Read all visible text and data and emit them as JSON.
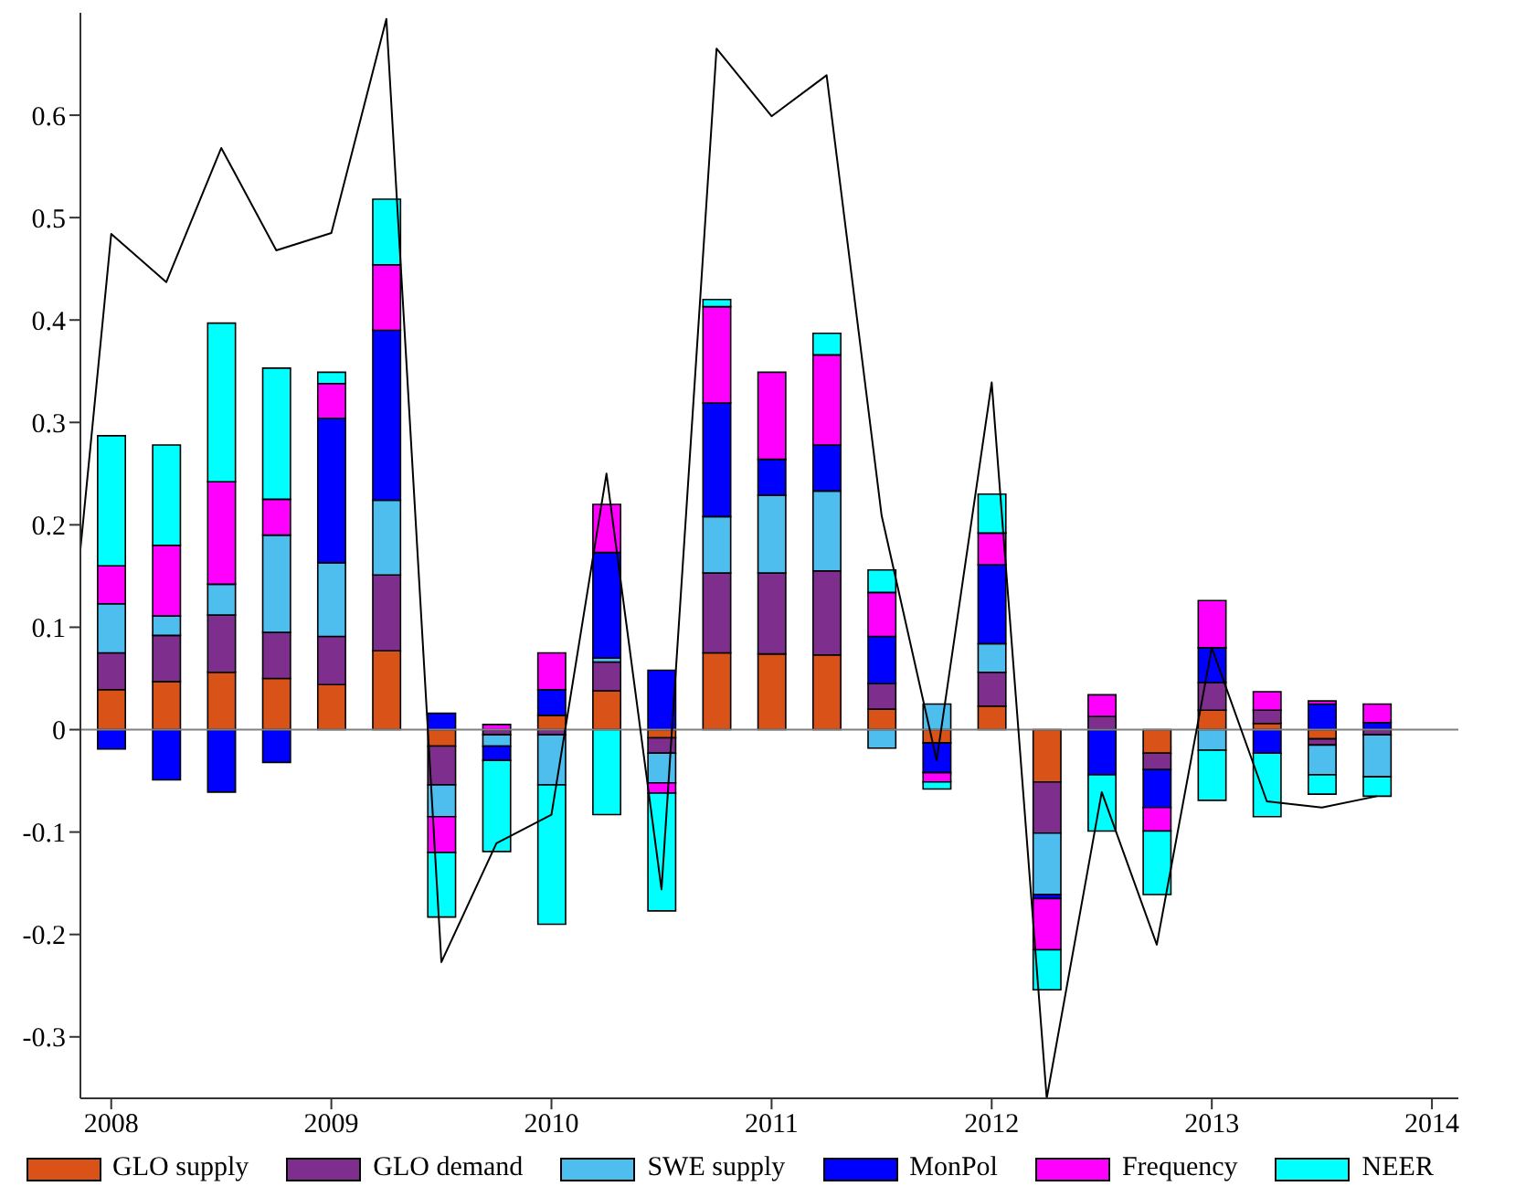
{
  "chart_data": {
    "type": "bar",
    "stacked": true,
    "x": [
      2008,
      2008.25,
      2008.5,
      2008.75,
      2009,
      2009.25,
      2009.5,
      2009.75,
      2010,
      2010.25,
      2010.5,
      2010.75,
      2011,
      2011.25,
      2011.5,
      2011.75,
      2012,
      2012.25,
      2012.5,
      2012.75,
      2013,
      2013.25,
      2013.5,
      2013.75
    ],
    "series": [
      {
        "name": "GLO supply",
        "color": "#d95319",
        "values": [
          0.039,
          0.047,
          0.056,
          0.05,
          0.044,
          0.077,
          -0.016,
          null,
          0.014,
          0.038,
          -0.008,
          0.075,
          0.074,
          0.073,
          0.02,
          -0.013,
          0.023,
          -0.051,
          0,
          -0.023,
          0.019,
          0.006,
          -0.009,
          null
        ]
      },
      {
        "name": "GLO demand",
        "color": "#7e2f8e",
        "values": [
          0.036,
          0.045,
          0.056,
          0.045,
          0.047,
          0.074,
          -0.038,
          -0.005,
          -0.005,
          0.028,
          -0.015,
          0.078,
          0.079,
          0.082,
          0.025,
          0,
          0.033,
          -0.05,
          0.013,
          -0.016,
          0.027,
          0.013,
          -0.006,
          -0.005
        ]
      },
      {
        "name": "SWE supply",
        "color": "#4dbeee",
        "values": [
          0.048,
          0.019,
          0.03,
          0.095,
          0.072,
          0.073,
          -0.031,
          -0.011,
          -0.049,
          0.004,
          -0.029,
          0.055,
          0.076,
          0.078,
          -0.018,
          0.025,
          0.028,
          -0.06,
          0,
          0,
          -0.02,
          0,
          -0.029,
          -0.041
        ]
      },
      {
        "name": "MonPol",
        "color": "#0000ff",
        "values": [
          -0.019,
          -0.049,
          -0.061,
          -0.032,
          0.141,
          0.166,
          0.016,
          -0.014,
          0.025,
          0.103,
          0.058,
          0.111,
          0.035,
          0.045,
          0.046,
          -0.029,
          0.077,
          -0.004,
          -0.044,
          -0.037,
          0.034,
          -0.023,
          0.025,
          0.007
        ]
      },
      {
        "name": "Frequency",
        "color": "#ff00ff",
        "values": [
          0.037,
          0.069,
          0.1,
          0.035,
          0.034,
          0.064,
          -0.035,
          0.005,
          0.036,
          0.047,
          -0.01,
          0.094,
          0.085,
          0.088,
          0.043,
          -0.009,
          0.031,
          -0.05,
          0.021,
          -0.023,
          0.046,
          0.018,
          0.003,
          0.018
        ]
      },
      {
        "name": "NEER",
        "color": "#00ffff",
        "values": [
          0.127,
          0.098,
          0.155,
          0.128,
          0.011,
          0.064,
          -0.063,
          -0.089,
          -0.136,
          -0.083,
          -0.115,
          0.007,
          0,
          0.021,
          0.022,
          -0.007,
          0.038,
          -0.039,
          -0.055,
          -0.062,
          -0.049,
          -0.062,
          -0.019,
          -0.019
        ]
      },
      {
        "type": "line",
        "color": "#000000",
        "x": [
          2007.86,
          2008,
          2008.25,
          2008.5,
          2008.75,
          2009,
          2009.25,
          2009.5,
          2009.75,
          2010,
          2010.25,
          2010.5,
          2010.75,
          2011,
          2011.25,
          2011.5,
          2011.75,
          2012,
          2012.25,
          2012.5,
          2012.75,
          2013,
          2013.25,
          2013.5,
          2013.75
        ],
        "values": [
          0.176,
          0.484,
          0.437,
          0.568,
          0.468,
          0.485,
          0.694,
          -0.227,
          -0.111,
          -0.083,
          0.25,
          -0.156,
          0.665,
          0.599,
          0.639,
          0.209,
          -0.03,
          0.339,
          -0.36,
          -0.061,
          -0.21,
          0.08,
          -0.07,
          -0.076,
          -0.065
        ]
      }
    ],
    "xlim": [
      2007.86,
      2014.12
    ],
    "xticks": [
      2008,
      2009,
      2010,
      2011,
      2012,
      2013,
      2014
    ],
    "ylim": [
      -0.36,
      0.7
    ],
    "yticks": [
      -0.3,
      -0.2,
      -0.1,
      0,
      0.1,
      0.2,
      0.3,
      0.4,
      0.5,
      0.6
    ],
    "ref_lines": [
      {
        "axis": "y",
        "value": 0,
        "color": "#808080"
      }
    ],
    "grid": false,
    "legend": "bottom"
  }
}
